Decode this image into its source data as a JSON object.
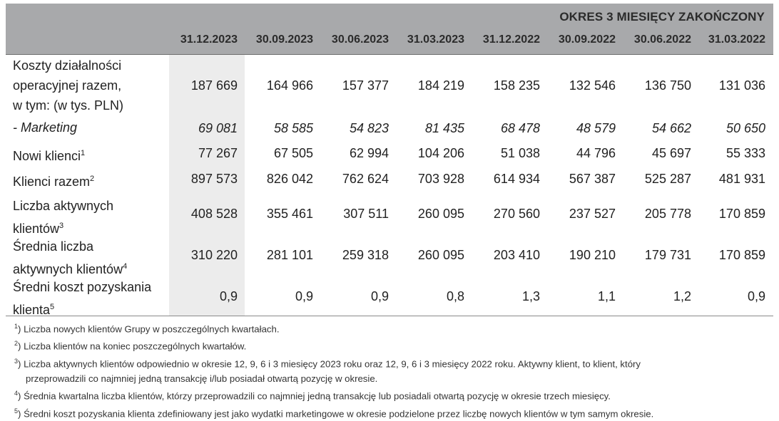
{
  "header": {
    "period_title": "OKRES 3 MIESIĘCY ZAKOŃCZONY",
    "dates": [
      "31.12.2023",
      "30.09.2023",
      "30.06.2023",
      "31.03.2023",
      "31.12.2022",
      "30.09.2022",
      "30.06.2022",
      "31.03.2022"
    ]
  },
  "rows": [
    {
      "label_lines": [
        "Koszty działalności",
        "operacyjnej razem,",
        "w tym: (w tys. PLN)"
      ],
      "sup": "",
      "values": [
        "187 669",
        "164 966",
        "157 377",
        "184 219",
        "158 235",
        "132 546",
        "136 750",
        "131 036"
      ]
    },
    {
      "label_lines": [
        "- Marketing"
      ],
      "sup": "",
      "values": [
        "69 081",
        "58 585",
        "54 823",
        "81 435",
        "68 478",
        "48 579",
        "54 662",
        "50 650"
      ]
    },
    {
      "label_lines": [
        "Nowi klienci"
      ],
      "sup": "1",
      "values": [
        "77 267",
        "67 505",
        "62 994",
        "104 206",
        "51 038",
        "44 796",
        "45 697",
        "55 333"
      ]
    },
    {
      "label_lines": [
        "Klienci razem"
      ],
      "sup": "2",
      "values": [
        "897 573",
        "826 042",
        "762 624",
        "703 928",
        "614 934",
        "567 387",
        "525 287",
        "481 931"
      ]
    },
    {
      "label_lines": [
        "Liczba aktywnych",
        "klientów"
      ],
      "sup": "3",
      "values": [
        "408 528",
        "355 461",
        "307 511",
        "260 095",
        "270 560",
        "237 527",
        "205 778",
        "170 859"
      ]
    },
    {
      "label_lines": [
        "Średnia liczba",
        "aktywnych klientów"
      ],
      "sup": "4",
      "values": [
        "310 220",
        "281 101",
        "259 318",
        "260 095",
        "203 410",
        "190 210",
        "179 731",
        "170 859"
      ]
    },
    {
      "label_lines": [
        "Średni koszt pozyskania",
        "klienta"
      ],
      "sup": "5",
      "values": [
        "0,9",
        "0,9",
        "0,9",
        "0,8",
        "1,3",
        "1,1",
        "1,2",
        "0,9"
      ]
    }
  ],
  "footnotes": [
    {
      "mark": "1",
      "text": ") Liczba nowych klientów Grupy w poszczególnych kwartałach."
    },
    {
      "mark": "2",
      "text": ") Liczba klientów na koniec poszczególnych kwartałów."
    },
    {
      "mark": "3",
      "text": ") Liczba aktywnych klientów odpowiednio w okresie 12, 9, 6 i 3 miesięcy 2023 roku oraz 12, 9, 6 i 3 miesięcy 2022 roku. Aktywny klient, to klient, który",
      "cont": "przeprowadzili co najmniej jedną transakcję i/lub posiadał otwartą pozycję w okresie."
    },
    {
      "mark": "4",
      "text": ") Średnia kwartalna liczba klientów, którzy przeprowadzili co najmniej jedną transakcję lub posiadali otwartą pozycję w okresie trzech miesięcy."
    },
    {
      "mark": "5",
      "text": ") Średni koszt pozyskania klienta zdefiniowany jest jako wydatki marketingowe w okresie podzielone przez liczbę nowych klientów w tym samym okresie."
    }
  ]
}
